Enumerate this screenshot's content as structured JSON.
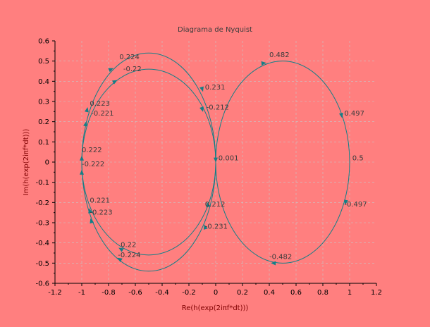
{
  "chart_data": {
    "type": "line",
    "title": "Diagrama de Nyquist",
    "xlabel": "Re(h(exp(2iπf*dt)))",
    "ylabel": "Im(h(exp(2iπf*dt)))",
    "xlim": [
      -1.2,
      1.2
    ],
    "ylim": [
      -0.6,
      0.6
    ],
    "x_ticks": [
      -1.2,
      -1,
      -0.8,
      -0.6,
      -0.4,
      -0.2,
      0,
      0.2,
      0.4,
      0.6,
      0.8,
      1,
      1.2
    ],
    "y_ticks": [
      -0.6,
      -0.5,
      -0.4,
      -0.3,
      -0.2,
      -0.1,
      0,
      0.1,
      0.2,
      0.3,
      0.4,
      0.5,
      0.6
    ],
    "x_tick_labels": [
      "-1.2",
      "-1",
      "-0.8",
      "-0.6",
      "-0.4",
      "-0.2",
      "0",
      "0.2",
      "0.4",
      "0.6",
      "0.8",
      "1",
      "1.2"
    ],
    "y_tick_labels": [
      "-0.6",
      "-0.5",
      "-0.4",
      "-0.3",
      "-0.2",
      "-0.1",
      "0",
      "0.1",
      "0.2",
      "0.3",
      "0.4",
      "0.5",
      "0.6"
    ],
    "grid": true,
    "series": [
      {
        "center": [
          -0.5,
          0
        ],
        "rx": 0.5,
        "ry": 0.54
      },
      {
        "center": [
          -0.5,
          0
        ],
        "rx": 0.5,
        "ry": 0.46
      },
      {
        "center": [
          0.5,
          0
        ],
        "rx": 0.5,
        "ry": 0.5
      }
    ],
    "annotations": [
      {
        "text": "0.224",
        "x": -0.72,
        "y": 0.52
      },
      {
        "text": "-0.22",
        "x": -0.69,
        "y": 0.46
      },
      {
        "text": "0.231",
        "x": -0.08,
        "y": 0.37
      },
      {
        "text": "-0.212",
        "x": -0.07,
        "y": 0.27
      },
      {
        "text": "0.223",
        "x": -0.94,
        "y": 0.29
      },
      {
        "text": "-0.221",
        "x": -0.93,
        "y": 0.24
      },
      {
        "text": "0.222",
        "x": -1.0,
        "y": 0.06
      },
      {
        "text": "-0.222",
        "x": -1.0,
        "y": -0.01
      },
      {
        "text": "0.001",
        "x": 0.02,
        "y": 0.02
      },
      {
        "text": "0.482",
        "x": 0.4,
        "y": 0.53
      },
      {
        "text": "0.497",
        "x": 0.96,
        "y": 0.24
      },
      {
        "text": "0.5",
        "x": 1.02,
        "y": 0.02
      },
      {
        "text": "-0.497",
        "x": 0.96,
        "y": -0.21
      },
      {
        "text": "-0.482",
        "x": 0.4,
        "y": -0.47
      },
      {
        "text": "0.221",
        "x": -0.94,
        "y": -0.19
      },
      {
        "text": "-0.223",
        "x": -0.94,
        "y": -0.25
      },
      {
        "text": "0.212",
        "x": -0.08,
        "y": -0.21
      },
      {
        "text": "-0.231",
        "x": -0.08,
        "y": -0.32
      },
      {
        "text": "0.22",
        "x": -0.71,
        "y": -0.41
      },
      {
        "text": "-0.224",
        "x": -0.73,
        "y": -0.46
      }
    ],
    "arrows": [
      {
        "x": -0.78,
        "y": 0.46,
        "dx": 1,
        "dy": 0.45
      },
      {
        "x": -0.75,
        "y": 0.4,
        "dx": 1,
        "dy": 0.55
      },
      {
        "x": -0.1,
        "y": 0.36,
        "dx": 0.3,
        "dy": -1
      },
      {
        "x": -0.1,
        "y": 0.26,
        "dx": 0.3,
        "dy": -1
      },
      {
        "x": -0.96,
        "y": 0.26,
        "dx": 0.2,
        "dy": 1
      },
      {
        "x": -0.97,
        "y": 0.19,
        "dx": 0.2,
        "dy": 1
      },
      {
        "x": -1.0,
        "y": 0.02,
        "dx": 0,
        "dy": 1
      },
      {
        "x": -1.0,
        "y": -0.05,
        "dx": 0,
        "dy": 1
      },
      {
        "x": 0.0,
        "y": 0.01,
        "dx": 0,
        "dy": -1
      },
      {
        "x": 0.36,
        "y": 0.49,
        "dx": 1,
        "dy": 0.1
      },
      {
        "x": 0.94,
        "y": 0.23,
        "dx": 0.2,
        "dy": -1
      },
      {
        "x": 0.97,
        "y": -0.2,
        "dx": -0.2,
        "dy": -1
      },
      {
        "x": 0.43,
        "y": -0.5,
        "dx": -1,
        "dy": 0.05
      },
      {
        "x": -0.94,
        "y": -0.24,
        "dx": -0.2,
        "dy": 1
      },
      {
        "x": -0.93,
        "y": -0.29,
        "dx": -0.3,
        "dy": 1
      },
      {
        "x": -0.06,
        "y": -0.21,
        "dx": -0.3,
        "dy": 1
      },
      {
        "x": -0.08,
        "y": -0.32,
        "dx": -0.3,
        "dy": 1
      },
      {
        "x": -0.71,
        "y": -0.43,
        "dx": -1,
        "dy": 0.6
      },
      {
        "x": -0.72,
        "y": -0.48,
        "dx": -1,
        "dy": 0.6
      }
    ],
    "colors": {
      "background": "#ff7f7f",
      "curve": "#127f87",
      "axis": "#000000",
      "grid": "#c8c8c8",
      "title": "#3c3c3c",
      "label": "#7f0000"
    }
  }
}
